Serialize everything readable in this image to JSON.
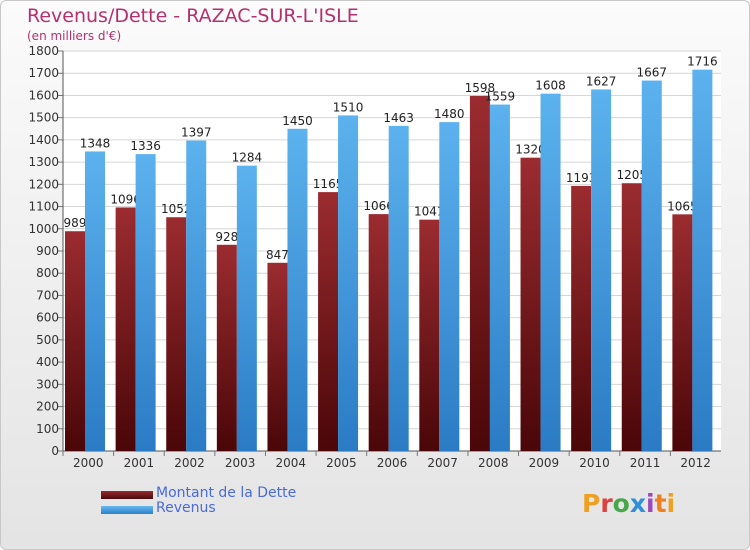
{
  "title": "Revenus/Dette - RAZAC-SUR-L'ISLE",
  "subtitle": "(en milliers d'€)",
  "legend": [
    {
      "label": "Montant de la Dette",
      "color": "#7a1a1e"
    },
    {
      "label": "Revenus",
      "color": "#4ba3e3"
    }
  ],
  "logo_text": "Proxiti",
  "chart_data": {
    "type": "bar",
    "title": "Revenus/Dette - RAZAC-SUR-L'ISLE",
    "subtitle": "(en milliers d'€)",
    "categories": [
      "2000",
      "2001",
      "2002",
      "2003",
      "2004",
      "2005",
      "2006",
      "2007",
      "2008",
      "2009",
      "2010",
      "2011",
      "2012"
    ],
    "series": [
      {
        "name": "Montant de la Dette",
        "color": "#7a1a1e",
        "values": [
          989,
          1096,
          1052,
          928,
          847,
          1165,
          1066,
          1041,
          1598,
          1320,
          1193,
          1205,
          1065
        ],
        "labels": [
          "989",
          "1096",
          "1052",
          "928",
          "847",
          "1165",
          "1066",
          "1041",
          "1598",
          "1320",
          "1193",
          "1205",
          "1065"
        ]
      },
      {
        "name": "Revenus",
        "color": "#4ba3e3",
        "values": [
          1348,
          1336,
          1397,
          1284,
          1450,
          1510,
          1463,
          1480,
          1559,
          1608,
          1627,
          1667,
          1716
        ],
        "labels": [
          "1348",
          "1336",
          "1397",
          "1284",
          "1450",
          "1510",
          "1463",
          "1480",
          "1559",
          "1608",
          "1627",
          "1667",
          "1716"
        ]
      }
    ],
    "ylim": [
      0,
      1800
    ],
    "ytick_step": 100,
    "grid": true,
    "legend_position": "bottom-left"
  }
}
